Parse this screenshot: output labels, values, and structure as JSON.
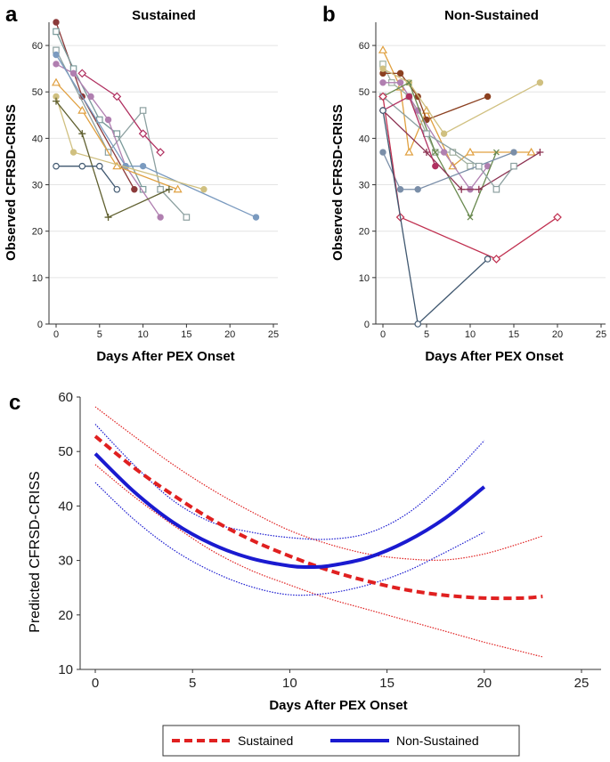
{
  "chart_data": [
    {
      "panel": "a",
      "type": "line",
      "title": "Sustained",
      "xlabel": "Days After PEX Onset",
      "ylabel": "Observed CFRSD-CRISS",
      "xlim": [
        0,
        25
      ],
      "ylim": [
        0,
        65
      ],
      "xticks": [
        0,
        5,
        10,
        15,
        20,
        25
      ],
      "yticks": [
        0,
        10,
        20,
        30,
        40,
        50,
        60
      ],
      "grid": "horizontal",
      "series": [
        {
          "color": "#8b3a3a",
          "marker": "circle-filled",
          "x": [
            0,
            3,
            9
          ],
          "y": [
            65,
            49,
            29
          ]
        },
        {
          "color": "#7a9a9a",
          "marker": "square-open",
          "x": [
            0,
            2,
            5,
            7,
            10
          ],
          "y": [
            63,
            55,
            44,
            41,
            29
          ]
        },
        {
          "color": "#8ca0a0",
          "marker": "square-open",
          "x": [
            0,
            6,
            10,
            12,
            15
          ],
          "y": [
            59,
            37,
            46,
            29,
            23
          ]
        },
        {
          "color": "#b07fb0",
          "marker": "circle-filled",
          "x": [
            0,
            2,
            4,
            6,
            8,
            12
          ],
          "y": [
            56,
            54,
            49,
            44,
            34,
            23
          ]
        },
        {
          "color": "#7a9abf",
          "marker": "circle-filled",
          "x": [
            0,
            8,
            10,
            23
          ],
          "y": [
            58,
            34,
            34,
            23
          ]
        },
        {
          "color": "#b03060",
          "marker": "diamond-open",
          "x": [
            3,
            7,
            10,
            12
          ],
          "y": [
            54,
            49,
            41,
            37
          ]
        },
        {
          "color": "#e0a040",
          "marker": "triangle-open",
          "x": [
            0,
            3,
            7,
            14
          ],
          "y": [
            52,
            46,
            34,
            29
          ]
        },
        {
          "color": "#d0c080",
          "marker": "circle-filled",
          "x": [
            0,
            2,
            17
          ],
          "y": [
            49,
            37,
            29
          ]
        },
        {
          "color": "#606030",
          "marker": "plus",
          "x": [
            0,
            3,
            6,
            13
          ],
          "y": [
            48,
            41,
            23,
            29
          ]
        },
        {
          "color": "#405870",
          "marker": "circle-open",
          "x": [
            0,
            3,
            5,
            7
          ],
          "y": [
            34,
            34,
            34,
            29
          ]
        }
      ]
    },
    {
      "panel": "b",
      "type": "line",
      "title": "Non-Sustained",
      "xlabel": "Days After PEX Onset",
      "ylabel": "Observed CFRSD-CRISS",
      "xlim": [
        0,
        25
      ],
      "ylim": [
        0,
        65
      ],
      "xticks": [
        0,
        5,
        10,
        15,
        20,
        25
      ],
      "yticks": [
        0,
        10,
        20,
        30,
        40,
        50,
        60
      ],
      "grid": "horizontal",
      "series": [
        {
          "color": "#e0a040",
          "marker": "triangle-open",
          "x": [
            0,
            2,
            3,
            5,
            8,
            10,
            17
          ],
          "y": [
            59,
            51,
            37,
            46,
            34,
            37,
            37
          ]
        },
        {
          "color": "#a0b0a0",
          "marker": "square-open",
          "x": [
            0,
            1,
            3,
            6,
            8,
            10
          ],
          "y": [
            56,
            52,
            49,
            37,
            37,
            34
          ]
        },
        {
          "color": "#8b4020",
          "marker": "circle-filled",
          "x": [
            0,
            2,
            4,
            5,
            12
          ],
          "y": [
            54,
            54,
            49,
            44,
            49
          ]
        },
        {
          "color": "#d0c080",
          "marker": "circle-filled",
          "x": [
            0,
            3,
            7,
            18
          ],
          "y": [
            55,
            52,
            41,
            52
          ]
        },
        {
          "color": "#b07fb0",
          "marker": "circle-filled",
          "x": [
            0,
            2,
            4,
            7,
            10,
            12
          ],
          "y": [
            52,
            52,
            46,
            37,
            29,
            34
          ]
        },
        {
          "color": "#6a8a50",
          "marker": "x",
          "x": [
            0,
            3,
            6,
            10,
            13
          ],
          "y": [
            49,
            52,
            37,
            23,
            37
          ]
        },
        {
          "color": "#8b3050",
          "marker": "plus",
          "x": [
            0,
            5,
            9,
            11,
            18
          ],
          "y": [
            46,
            37,
            29,
            29,
            37
          ]
        },
        {
          "color": "#7a8ea8",
          "marker": "circle-filled",
          "x": [
            0,
            2,
            4,
            15
          ],
          "y": [
            37,
            29,
            29,
            37
          ]
        },
        {
          "color": "#8ca0a0",
          "marker": "square-open",
          "x": [
            0,
            5,
            11,
            13,
            15
          ],
          "y": [
            49,
            41,
            34,
            29,
            34
          ]
        },
        {
          "color": "#c03050",
          "marker": "diamond-open",
          "x": [
            0,
            2,
            13,
            20
          ],
          "y": [
            49,
            23,
            14,
            23
          ]
        },
        {
          "color": "#b03060",
          "marker": "circle-filled",
          "x": [
            0,
            3,
            6
          ],
          "y": [
            46,
            49,
            34
          ]
        },
        {
          "color": "#405870",
          "marker": "circle-open",
          "x": [
            0,
            4,
            12
          ],
          "y": [
            46,
            0,
            14
          ]
        }
      ]
    },
    {
      "panel": "c",
      "type": "line",
      "title": "",
      "xlabel": "Days After PEX Onset",
      "ylabel": "Predicted CFRSD-CRISS",
      "xlim": [
        0,
        25
      ],
      "ylim": [
        10,
        60
      ],
      "xticks": [
        0,
        5,
        10,
        15,
        20,
        25
      ],
      "yticks": [
        10,
        20,
        30,
        40,
        50,
        60
      ],
      "legend_position": "bottom",
      "series": [
        {
          "name": "Sustained",
          "color": "#e02020",
          "style": "dashed",
          "role": "fit",
          "x": [
            0,
            2,
            4,
            6,
            8,
            10,
            12,
            14,
            16,
            18,
            20,
            22,
            23
          ],
          "y": [
            52.8,
            47.0,
            42.0,
            37.5,
            33.8,
            30.8,
            28.2,
            26.2,
            24.6,
            23.6,
            23.1,
            23.1,
            23.4
          ]
        },
        {
          "name": "Sustained upper CI",
          "color": "#e02020",
          "style": "dotted",
          "role": "ci",
          "x": [
            0,
            2,
            4,
            6,
            8,
            10,
            12,
            14,
            16,
            18,
            20,
            22,
            23
          ],
          "y": [
            58.2,
            52.8,
            47.6,
            43.0,
            39.0,
            35.5,
            33.0,
            31.2,
            30.3,
            30.1,
            31.2,
            33.3,
            34.5
          ]
        },
        {
          "name": "Sustained lower CI",
          "color": "#e02020",
          "style": "dotted",
          "role": "ci",
          "x": [
            0,
            2,
            4,
            6,
            8,
            10,
            12,
            14,
            16,
            18,
            20,
            22,
            23
          ],
          "y": [
            47.6,
            41.7,
            36.5,
            31.8,
            28.2,
            25.5,
            23.0,
            21.0,
            19.0,
            17.0,
            15.0,
            13.2,
            12.3
          ]
        },
        {
          "name": "Non-Sustained",
          "color": "#1a1ad0",
          "style": "solid",
          "role": "fit",
          "x": [
            0,
            2,
            4,
            6,
            8,
            10,
            11,
            12,
            14,
            16,
            18,
            20
          ],
          "y": [
            49.6,
            42.6,
            37.0,
            33.0,
            30.4,
            29.0,
            28.8,
            29.0,
            30.5,
            33.5,
            37.8,
            43.5
          ]
        },
        {
          "name": "Non-Sustained upper CI",
          "color": "#1a1ad0",
          "style": "dotted",
          "role": "ci",
          "x": [
            0,
            2,
            4,
            6,
            8,
            10,
            12,
            14,
            16,
            18,
            20
          ],
          "y": [
            55.0,
            47.5,
            41.0,
            37.0,
            35.2,
            34.2,
            33.9,
            35.0,
            38.5,
            44.5,
            52.0
          ]
        },
        {
          "name": "Non-Sustained lower CI",
          "color": "#1a1ad0",
          "style": "dotted",
          "role": "ci",
          "x": [
            0,
            2,
            4,
            6,
            8,
            10,
            12,
            14,
            16,
            18,
            20
          ],
          "y": [
            44.3,
            37.5,
            32.0,
            28.0,
            25.2,
            23.7,
            24.0,
            25.5,
            28.0,
            31.5,
            35.2
          ]
        }
      ],
      "legend": [
        {
          "label": "Sustained",
          "color": "#e02020",
          "style": "dashed"
        },
        {
          "label": "Non-Sustained",
          "color": "#1a1ad0",
          "style": "solid"
        }
      ]
    }
  ]
}
